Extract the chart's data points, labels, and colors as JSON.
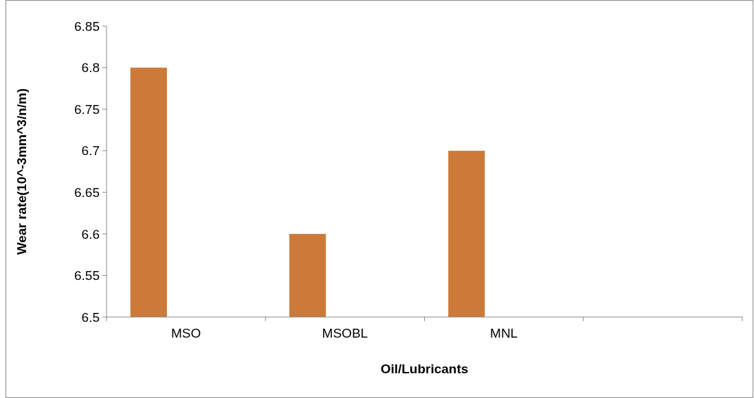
{
  "chart_data": {
    "type": "bar",
    "xlabel": "Oil/Lubricants",
    "ylabel": "Wear rate(10^-3mm^3/n/m)",
    "categories": [
      "MSO",
      "MSOBL",
      "MNL",
      null
    ],
    "values": [
      6.8,
      6.6,
      6.7,
      null
    ],
    "color": "#cc7a3a",
    "ylim": [
      6.5,
      6.85
    ],
    "yticks": [
      6.5,
      6.55,
      6.6,
      6.65,
      6.7,
      6.75,
      6.8,
      6.85
    ],
    "grid": false
  }
}
